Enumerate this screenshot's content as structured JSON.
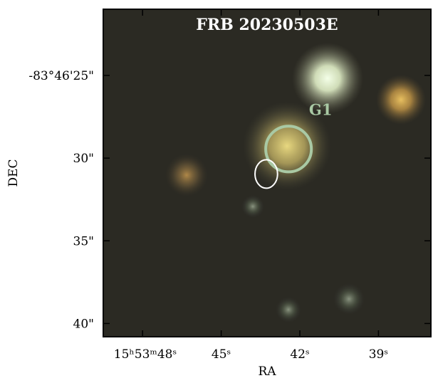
{
  "chart_data": {
    "type": "image",
    "title": "FRB 20230503E",
    "xlabel": "RA",
    "ylabel": "DEC",
    "xlim": [
      49.5,
      37.0
    ],
    "ylim": [
      21.0,
      40.8
    ],
    "xticks": [
      {
        "value": 48,
        "label": "15ʰ53ᵐ48ˢ"
      },
      {
        "value": 45,
        "label": "45ˢ"
      },
      {
        "value": 42,
        "label": "42ˢ"
      },
      {
        "value": 39,
        "label": "39ˢ"
      }
    ],
    "yticks": [
      {
        "value": 25,
        "label": "-83°46'25\""
      },
      {
        "value": 30,
        "label": "30\""
      },
      {
        "value": 35,
        "label": "35\""
      },
      {
        "value": 40,
        "label": "40\""
      }
    ],
    "regions": [
      {
        "label": "G1",
        "ra": 42.43,
        "dec": 29.45,
        "rx": 0.87,
        "ry": 1.38,
        "color": "#a9c9a4"
      },
      {
        "ra": 43.28,
        "dec": 30.96,
        "rx": 0.43,
        "ry": 0.86,
        "color": "#ffffff"
      }
    ]
  }
}
